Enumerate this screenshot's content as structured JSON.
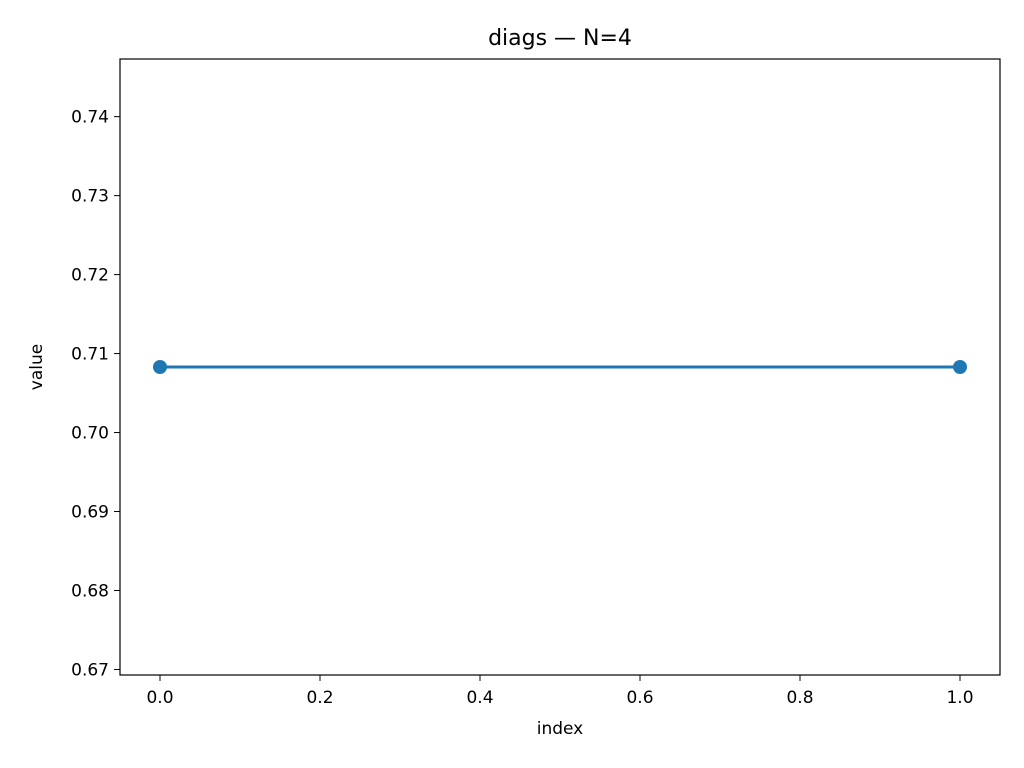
{
  "chart_data": {
    "type": "line",
    "title": "diags — N=4",
    "xlabel": "index",
    "ylabel": "value",
    "xlim": [
      -0.05,
      1.05
    ],
    "ylim": [
      0.6693,
      0.7473
    ],
    "x_ticks": [
      0.0,
      0.2,
      0.4,
      0.6,
      0.8,
      1.0
    ],
    "x_tick_labels": [
      "0.0",
      "0.2",
      "0.4",
      "0.6",
      "0.8",
      "1.0"
    ],
    "y_ticks": [
      0.67,
      0.68,
      0.69,
      0.7,
      0.71,
      0.72,
      0.73,
      0.74
    ],
    "y_tick_labels": [
      "0.67",
      "0.68",
      "0.69",
      "0.70",
      "0.71",
      "0.72",
      "0.73",
      "0.74"
    ],
    "grid": false,
    "series": [
      {
        "x": [
          0,
          1
        ],
        "values": [
          0.7083,
          0.7083
        ],
        "color": "#1f77b4",
        "marker": "circle"
      }
    ]
  }
}
